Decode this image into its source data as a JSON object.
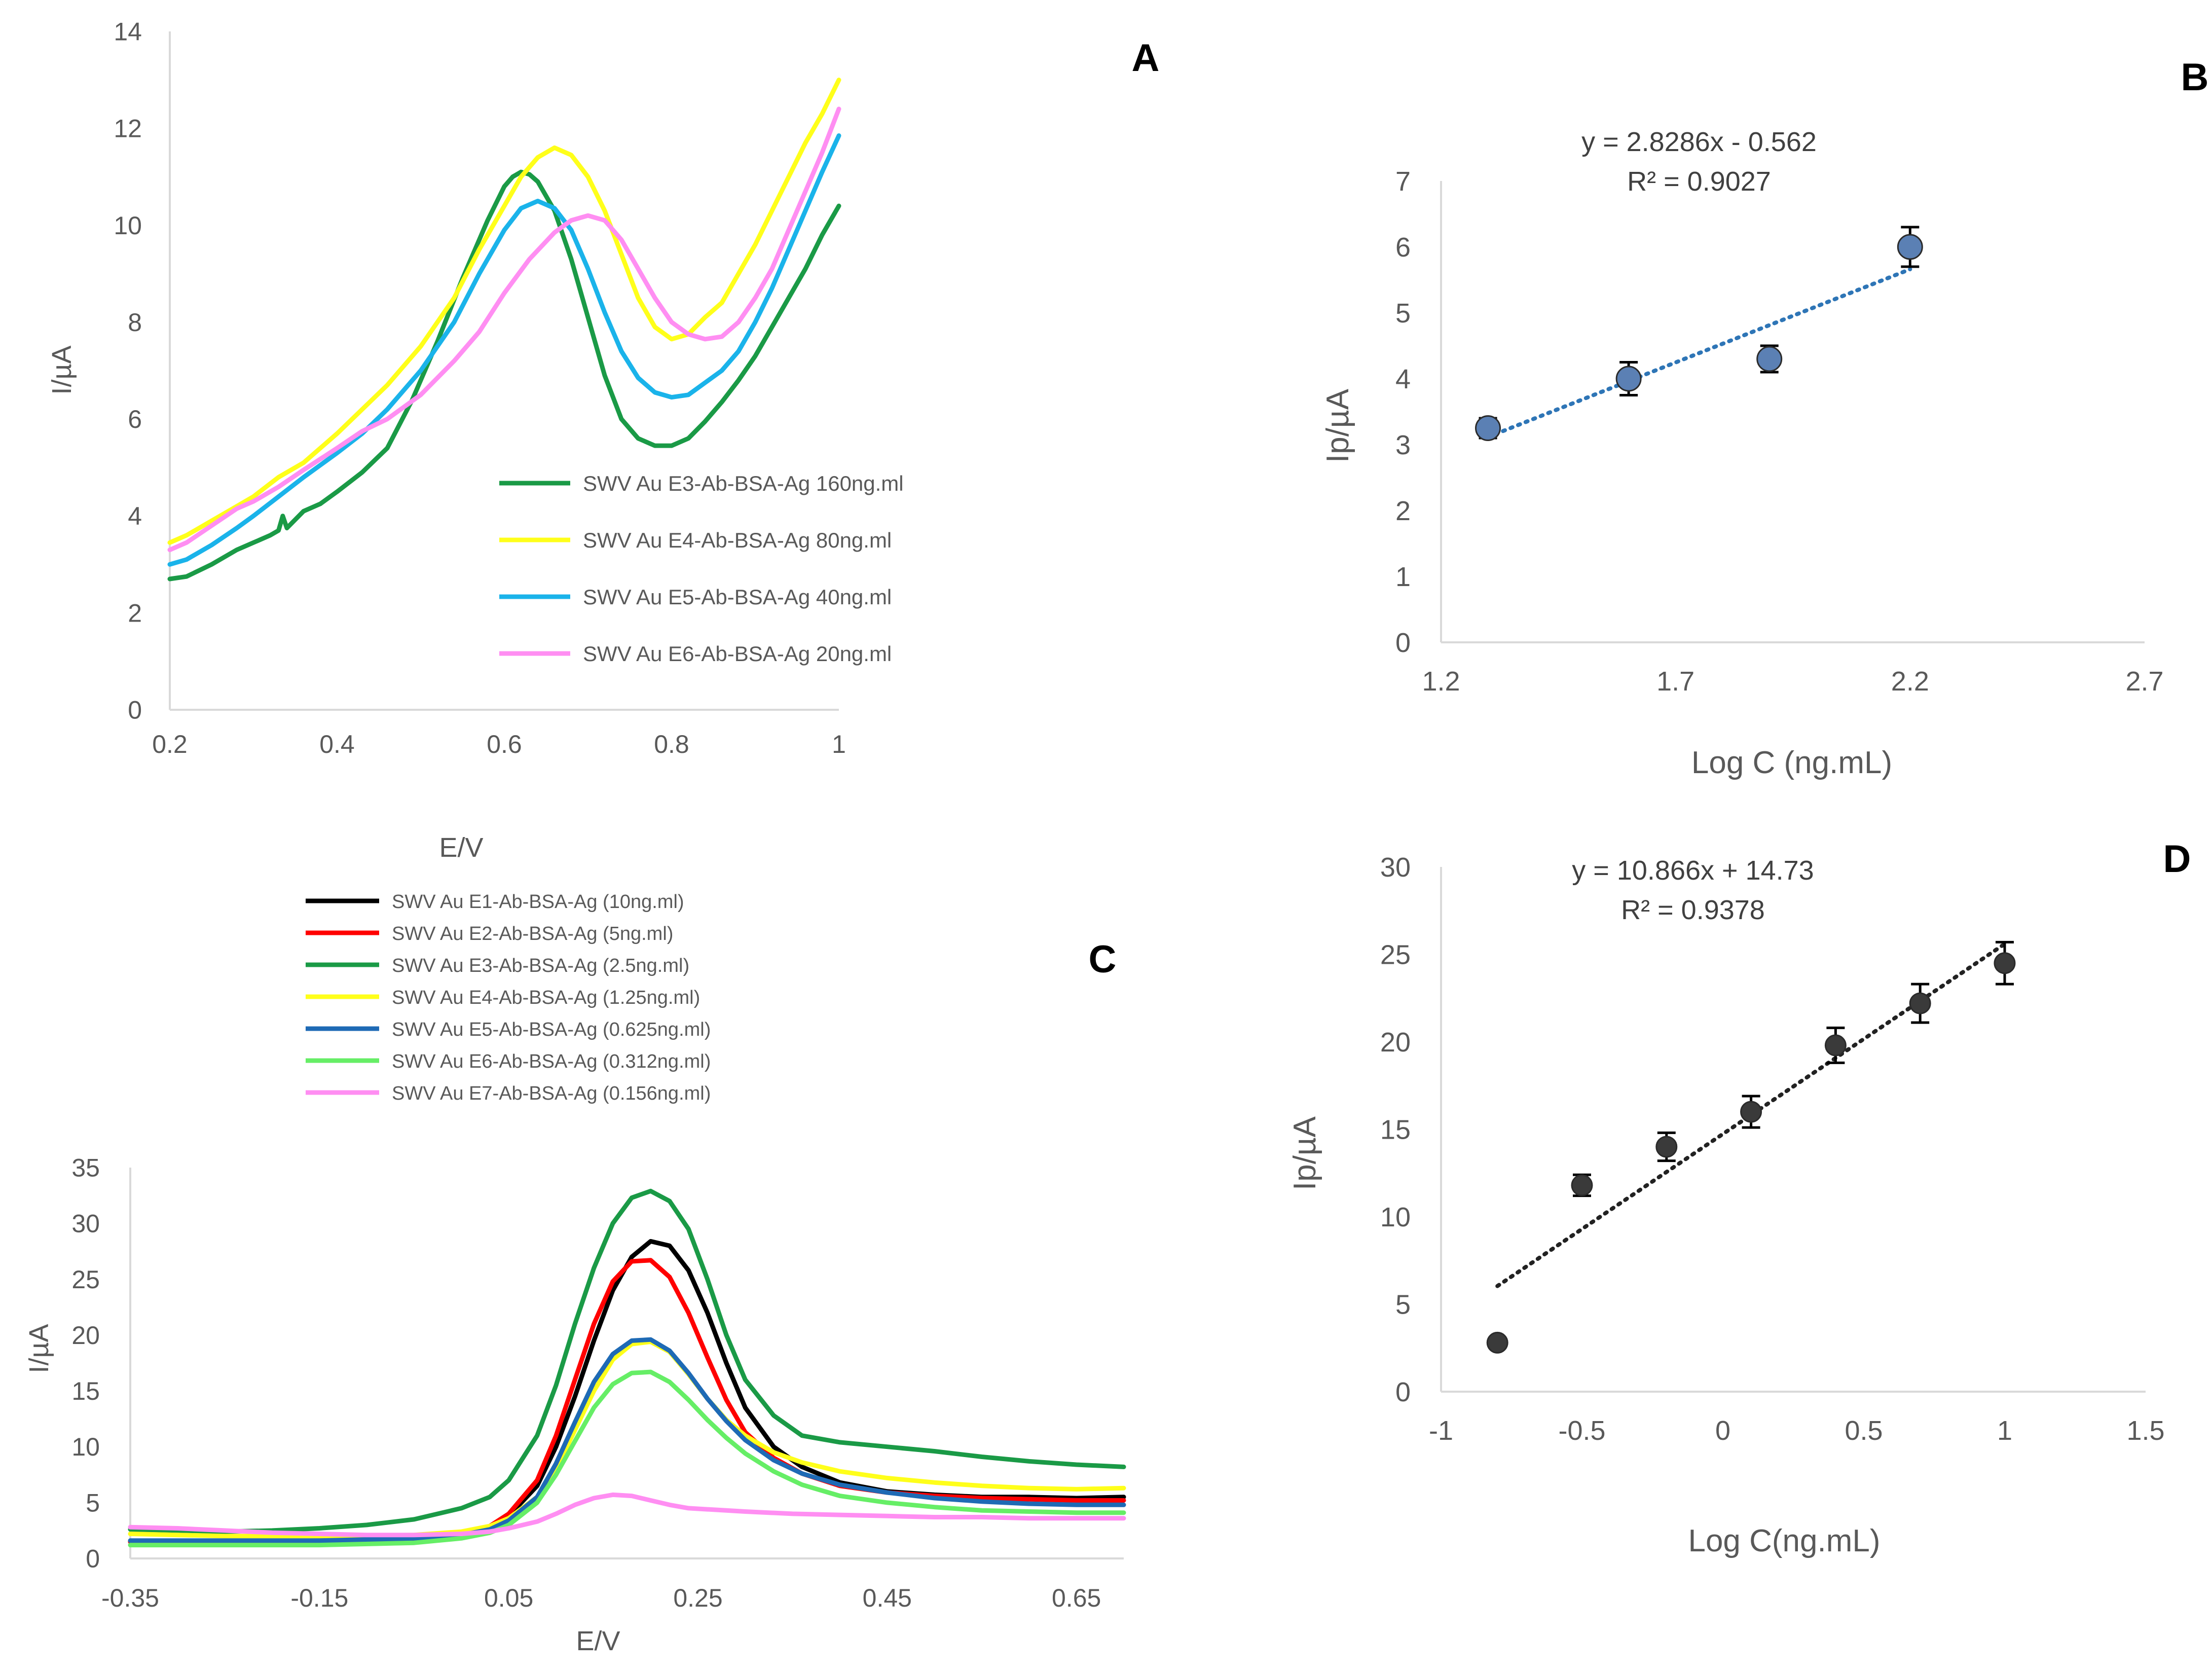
{
  "chart_data": [
    {
      "panel": "A",
      "type": "line",
      "title": "",
      "xlabel": "E/V",
      "ylabel": "I/µA",
      "xlim": [
        0.2,
        1.0
      ],
      "ylim": [
        0,
        14
      ],
      "x_ticks": [
        "0.2",
        "0.4",
        "0.6",
        "0.8",
        "1"
      ],
      "y_ticks": [
        "0",
        "2",
        "4",
        "6",
        "8",
        "10",
        "12",
        "14"
      ],
      "legend_position": "middle-right",
      "series": [
        {
          "name": "SWV Au E3-Ab-BSA-Ag 160ng.ml",
          "color": "#1a9a46",
          "x": [
            0.2,
            0.22,
            0.25,
            0.28,
            0.3,
            0.32,
            0.33,
            0.335,
            0.34,
            0.36,
            0.38,
            0.4,
            0.43,
            0.46,
            0.49,
            0.52,
            0.55,
            0.58,
            0.6,
            0.61,
            0.62,
            0.63,
            0.64,
            0.66,
            0.68,
            0.7,
            0.72,
            0.74,
            0.76,
            0.78,
            0.8,
            0.82,
            0.84,
            0.86,
            0.88,
            0.9,
            0.92,
            0.94,
            0.96,
            0.98,
            1.0
          ],
          "y": [
            2.7,
            2.75,
            3.0,
            3.3,
            3.45,
            3.6,
            3.7,
            4.0,
            3.75,
            4.1,
            4.25,
            4.5,
            4.9,
            5.4,
            6.4,
            7.6,
            8.9,
            10.1,
            10.8,
            11.0,
            11.1,
            11.05,
            10.9,
            10.3,
            9.3,
            8.1,
            6.9,
            6.0,
            5.6,
            5.45,
            5.45,
            5.6,
            5.95,
            6.35,
            6.8,
            7.3,
            7.9,
            8.5,
            9.1,
            9.8,
            10.4
          ]
        },
        {
          "name": "SWV Au E4-Ab-BSA-Ag 80ng.ml",
          "color": "#ffff1a",
          "x": [
            0.2,
            0.22,
            0.25,
            0.28,
            0.3,
            0.33,
            0.36,
            0.4,
            0.43,
            0.46,
            0.5,
            0.54,
            0.57,
            0.6,
            0.62,
            0.64,
            0.66,
            0.68,
            0.7,
            0.72,
            0.74,
            0.76,
            0.78,
            0.8,
            0.82,
            0.84,
            0.86,
            0.88,
            0.9,
            0.92,
            0.94,
            0.96,
            0.98,
            1.0
          ],
          "y": [
            3.45,
            3.6,
            3.9,
            4.2,
            4.4,
            4.8,
            5.1,
            5.7,
            6.2,
            6.7,
            7.5,
            8.5,
            9.5,
            10.4,
            11.0,
            11.4,
            11.6,
            11.45,
            11.0,
            10.3,
            9.4,
            8.5,
            7.9,
            7.65,
            7.75,
            8.1,
            8.4,
            9.0,
            9.6,
            10.3,
            11.0,
            11.7,
            12.3,
            13.0
          ]
        },
        {
          "name": "SWV Au E5-Ab-BSA-Ag 40ng.ml",
          "color": "#1ab3ea",
          "x": [
            0.2,
            0.22,
            0.25,
            0.28,
            0.3,
            0.33,
            0.36,
            0.4,
            0.43,
            0.46,
            0.5,
            0.54,
            0.57,
            0.6,
            0.62,
            0.64,
            0.66,
            0.68,
            0.7,
            0.72,
            0.74,
            0.76,
            0.78,
            0.8,
            0.82,
            0.84,
            0.86,
            0.88,
            0.9,
            0.92,
            0.94,
            0.96,
            0.98,
            1.0
          ],
          "y": [
            3.0,
            3.1,
            3.4,
            3.75,
            4.0,
            4.4,
            4.8,
            5.3,
            5.7,
            6.2,
            7.0,
            8.0,
            9.0,
            9.9,
            10.35,
            10.5,
            10.35,
            9.9,
            9.1,
            8.2,
            7.4,
            6.85,
            6.55,
            6.45,
            6.5,
            6.75,
            7.0,
            7.4,
            8.0,
            8.7,
            9.5,
            10.3,
            11.1,
            11.85
          ]
        },
        {
          "name": "SWV Au E6-Ab-BSA-Ag 20ng.ml",
          "color": "#ff8ef2",
          "x": [
            0.2,
            0.22,
            0.25,
            0.28,
            0.3,
            0.33,
            0.36,
            0.4,
            0.43,
            0.46,
            0.5,
            0.54,
            0.57,
            0.6,
            0.63,
            0.66,
            0.68,
            0.7,
            0.72,
            0.74,
            0.76,
            0.78,
            0.8,
            0.82,
            0.84,
            0.86,
            0.88,
            0.9,
            0.92,
            0.94,
            0.96,
            0.98,
            1.0
          ],
          "y": [
            3.3,
            3.45,
            3.8,
            4.15,
            4.3,
            4.6,
            4.95,
            5.4,
            5.75,
            6.0,
            6.5,
            7.2,
            7.8,
            8.6,
            9.3,
            9.85,
            10.1,
            10.2,
            10.1,
            9.7,
            9.1,
            8.5,
            8.0,
            7.75,
            7.65,
            7.7,
            8.0,
            8.5,
            9.1,
            9.9,
            10.7,
            11.5,
            12.4
          ]
        }
      ]
    },
    {
      "panel": "B",
      "type": "scatter",
      "title": "",
      "xlabel": "Log C (ng.mL)",
      "ylabel": "Ip/µA",
      "xlim": [
        1.2,
        2.7
      ],
      "ylim": [
        0,
        7
      ],
      "x_ticks": [
        "1.2",
        "1.7",
        "2.2",
        "2.7"
      ],
      "y_ticks": [
        "0",
        "1",
        "2",
        "3",
        "4",
        "5",
        "6",
        "7"
      ],
      "points": {
        "x": [
          1.3,
          1.6,
          1.9,
          2.2
        ],
        "y": [
          3.25,
          4.0,
          4.3,
          6.0
        ],
        "error": [
          0.15,
          0.25,
          0.2,
          0.3
        ]
      },
      "trendline": {
        "slope": 2.8286,
        "intercept": -0.562,
        "x_range": [
          1.3,
          2.2
        ]
      },
      "equation": "y = 2.8286x - 0.562",
      "r_squared": "R² = 0.9027",
      "marker_color": "#5b80b4",
      "trend_color": "#2e75b6"
    },
    {
      "panel": "C",
      "type": "line",
      "title": "",
      "xlabel": "E/V",
      "ylabel": "I/µA",
      "xlim": [
        -0.35,
        0.7
      ],
      "ylim": [
        0,
        35
      ],
      "x_ticks": [
        "-0.35",
        "-0.15",
        "0.05",
        "0.25",
        "0.45",
        "0.65"
      ],
      "y_ticks": [
        "0",
        "5",
        "10",
        "15",
        "20",
        "25",
        "30",
        "35"
      ],
      "legend_position": "top",
      "series": [
        {
          "name": "SWV Au E1-Ab-BSA-Ag (10ng.ml)",
          "color": "#000000",
          "x": [
            -0.35,
            -0.25,
            -0.15,
            -0.05,
            0.0,
            0.03,
            0.05,
            0.08,
            0.1,
            0.12,
            0.14,
            0.16,
            0.18,
            0.2,
            0.22,
            0.24,
            0.26,
            0.28,
            0.3,
            0.33,
            0.36,
            0.4,
            0.45,
            0.5,
            0.55,
            0.6,
            0.65,
            0.7
          ],
          "y": [
            1.5,
            1.5,
            1.6,
            1.8,
            2.2,
            2.8,
            3.8,
            6.5,
            10.0,
            14.5,
            19.5,
            24.0,
            27.0,
            28.4,
            28.0,
            25.8,
            22.0,
            17.5,
            13.5,
            10.0,
            8.2,
            6.8,
            6.0,
            5.7,
            5.5,
            5.5,
            5.4,
            5.5
          ]
        },
        {
          "name": "SWV Au E2-Ab-BSA-Ag (5ng.ml)",
          "color": "#ff0000",
          "x": [
            -0.35,
            -0.25,
            -0.15,
            -0.05,
            0.0,
            0.03,
            0.05,
            0.08,
            0.1,
            0.12,
            0.14,
            0.16,
            0.18,
            0.2,
            0.22,
            0.24,
            0.26,
            0.28,
            0.3,
            0.33,
            0.36,
            0.4,
            0.45,
            0.5,
            0.55,
            0.6,
            0.65,
            0.7
          ],
          "y": [
            1.5,
            1.5,
            1.6,
            1.8,
            2.2,
            2.9,
            4.0,
            7.0,
            11.0,
            16.0,
            21.0,
            24.8,
            26.6,
            26.7,
            25.2,
            22.0,
            18.0,
            14.2,
            11.3,
            9.0,
            7.6,
            6.5,
            5.9,
            5.6,
            5.4,
            5.3,
            5.2,
            5.2
          ]
        },
        {
          "name": "SWV Au E3-Ab-BSA-Ag (2.5ng.ml)",
          "color": "#1a9a46",
          "x": [
            -0.35,
            -0.3,
            -0.25,
            -0.2,
            -0.15,
            -0.1,
            -0.05,
            0.0,
            0.03,
            0.05,
            0.08,
            0.1,
            0.12,
            0.14,
            0.16,
            0.18,
            0.2,
            0.22,
            0.24,
            0.26,
            0.28,
            0.3,
            0.33,
            0.36,
            0.4,
            0.45,
            0.5,
            0.55,
            0.6,
            0.65,
            0.7
          ],
          "y": [
            2.6,
            2.5,
            2.4,
            2.5,
            2.7,
            3.0,
            3.5,
            4.5,
            5.5,
            7.0,
            11.0,
            15.5,
            21.0,
            26.0,
            30.0,
            32.3,
            32.9,
            32.0,
            29.5,
            25.0,
            20.0,
            16.0,
            12.8,
            11.0,
            10.4,
            10.0,
            9.6,
            9.1,
            8.7,
            8.4,
            8.2
          ]
        },
        {
          "name": "SWV Au E4-Ab-BSA-Ag (1.25ng.ml)",
          "color": "#ffff1a",
          "x": [
            -0.35,
            -0.25,
            -0.15,
            -0.05,
            0.0,
            0.03,
            0.05,
            0.08,
            0.1,
            0.12,
            0.14,
            0.16,
            0.18,
            0.2,
            0.22,
            0.24,
            0.26,
            0.28,
            0.3,
            0.33,
            0.36,
            0.4,
            0.45,
            0.5,
            0.55,
            0.6,
            0.65,
            0.7
          ],
          "y": [
            2.2,
            2.0,
            2.0,
            2.1,
            2.4,
            2.9,
            3.6,
            5.5,
            8.0,
            11.5,
            15.0,
            17.8,
            19.2,
            19.4,
            18.5,
            16.5,
            14.3,
            12.4,
            11.0,
            9.5,
            8.6,
            7.8,
            7.2,
            6.8,
            6.5,
            6.3,
            6.2,
            6.3
          ]
        },
        {
          "name": "SWV Au E5-Ab-BSA-Ag (0.625ng.ml)",
          "color": "#1e6ab5",
          "x": [
            -0.35,
            -0.25,
            -0.15,
            -0.05,
            0.0,
            0.03,
            0.05,
            0.08,
            0.1,
            0.12,
            0.14,
            0.16,
            0.18,
            0.2,
            0.22,
            0.24,
            0.26,
            0.28,
            0.3,
            0.33,
            0.36,
            0.4,
            0.45,
            0.5,
            0.55,
            0.6,
            0.65,
            0.7
          ],
          "y": [
            1.6,
            1.6,
            1.6,
            1.8,
            2.1,
            2.6,
            3.4,
            5.5,
            8.5,
            12.2,
            15.8,
            18.3,
            19.5,
            19.6,
            18.6,
            16.6,
            14.3,
            12.3,
            10.6,
            8.8,
            7.6,
            6.6,
            5.9,
            5.4,
            5.1,
            4.9,
            4.8,
            4.8
          ]
        },
        {
          "name": "SWV Au E6-Ab-BSA-Ag (0.312ng.ml)",
          "color": "#66ee66",
          "x": [
            -0.35,
            -0.25,
            -0.15,
            -0.05,
            0.0,
            0.03,
            0.05,
            0.08,
            0.1,
            0.12,
            0.14,
            0.16,
            0.18,
            0.2,
            0.22,
            0.24,
            0.26,
            0.28,
            0.3,
            0.33,
            0.36,
            0.4,
            0.45,
            0.5,
            0.55,
            0.6,
            0.65,
            0.7
          ],
          "y": [
            1.2,
            1.2,
            1.2,
            1.4,
            1.8,
            2.3,
            3.0,
            5.0,
            7.5,
            10.5,
            13.5,
            15.6,
            16.6,
            16.7,
            15.8,
            14.2,
            12.4,
            10.8,
            9.4,
            7.8,
            6.6,
            5.6,
            5.0,
            4.6,
            4.3,
            4.2,
            4.1,
            4.1
          ]
        },
        {
          "name": "SWV Au E7-Ab-BSA-Ag (0.156ng.ml)",
          "color": "#ff8ef2",
          "x": [
            -0.35,
            -0.3,
            -0.25,
            -0.2,
            -0.15,
            -0.1,
            -0.05,
            0.0,
            0.03,
            0.05,
            0.08,
            0.1,
            0.12,
            0.14,
            0.16,
            0.18,
            0.2,
            0.22,
            0.24,
            0.26,
            0.28,
            0.3,
            0.35,
            0.4,
            0.45,
            0.5,
            0.55,
            0.6,
            0.65,
            0.7
          ],
          "y": [
            2.8,
            2.7,
            2.5,
            2.3,
            2.2,
            2.1,
            2.1,
            2.2,
            2.4,
            2.7,
            3.3,
            4.0,
            4.8,
            5.4,
            5.7,
            5.6,
            5.2,
            4.8,
            4.5,
            4.4,
            4.3,
            4.2,
            4.0,
            3.9,
            3.8,
            3.7,
            3.7,
            3.6,
            3.6,
            3.6
          ]
        }
      ]
    },
    {
      "panel": "D",
      "type": "scatter",
      "title": "",
      "xlabel": "Log C(ng.mL)",
      "ylabel": "Ip/µA",
      "xlim": [
        -1,
        1.5
      ],
      "ylim": [
        0,
        30
      ],
      "x_ticks": [
        "-1",
        "-0.5",
        "0",
        "0.5",
        "1",
        "1.5"
      ],
      "y_ticks": [
        "0",
        "5",
        "10",
        "15",
        "20",
        "25",
        "30"
      ],
      "points": {
        "x": [
          -0.8,
          -0.5,
          -0.2,
          0.1,
          0.4,
          0.7,
          1.0
        ],
        "y": [
          2.8,
          11.8,
          14.0,
          16.0,
          19.8,
          22.2,
          24.5
        ],
        "error": [
          0.0,
          0.6,
          0.8,
          0.9,
          1.0,
          1.1,
          1.2
        ]
      },
      "trendline": {
        "slope": 10.866,
        "intercept": 14.73,
        "x_range": [
          -0.8,
          1.0
        ]
      },
      "equation": "y = 10.866x + 14.73",
      "r_squared": "R² = 0.9378",
      "marker_color": "#3a3a3a",
      "trend_color": "#222222"
    }
  ],
  "panel_labels": {
    "a": "A",
    "b": "B",
    "c": "C",
    "d": "D"
  }
}
